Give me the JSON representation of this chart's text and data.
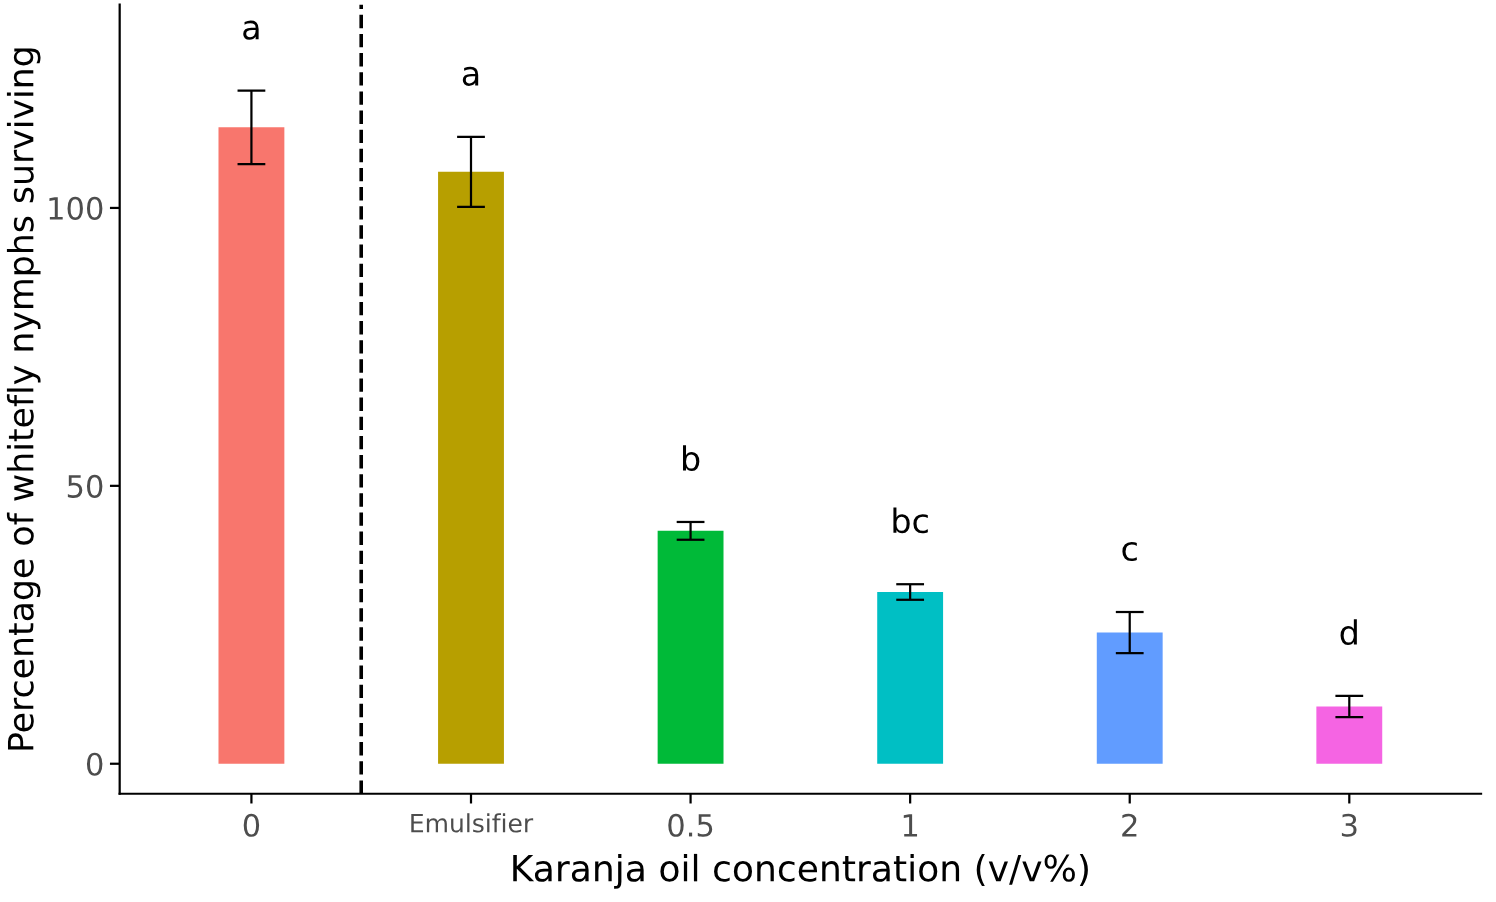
{
  "chart_data": {
    "type": "bar",
    "xlabel": "Karanja oil concentration (v/v%)",
    "ylabel": "Percentage of whitefly nymphs surviving",
    "categories": [
      "0",
      "Emulsifier",
      "0.5",
      "1",
      "2",
      "3"
    ],
    "values": [
      114.5,
      106.5,
      41.9,
      30.9,
      23.6,
      10.3
    ],
    "errors": [
      6.6,
      6.3,
      1.6,
      1.4,
      3.7,
      1.9
    ],
    "colors": [
      "#f8766d",
      "#b79f00",
      "#00ba38",
      "#00bfc4",
      "#619cff",
      "#f564e3"
    ],
    "ylim": [
      -5.4,
      136.6
    ],
    "yticks": [
      0,
      50,
      100
    ],
    "grid": false,
    "annotations": [
      "a",
      "a",
      "b",
      "bc",
      "c",
      "d"
    ]
  }
}
